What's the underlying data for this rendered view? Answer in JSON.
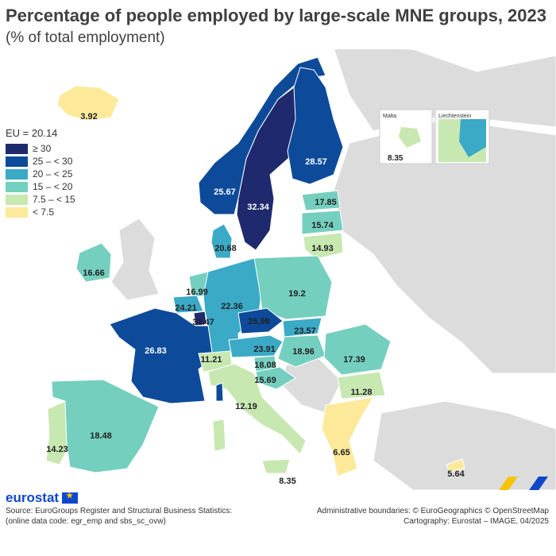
{
  "title": "Percentage of people employed by large-scale MNE groups, 2023",
  "subtitle": "(% of total employment)",
  "legend": {
    "eu_label": "EU = 20.14",
    "classes": [
      {
        "label": "≥ 30",
        "color": "#1f2a6e"
      },
      {
        "label": "25 – < 30",
        "color": "#0d4b9a"
      },
      {
        "label": "20 – < 25",
        "color": "#3aaac6"
      },
      {
        "label": "15 – < 20",
        "color": "#74cfbf"
      },
      {
        "label": "7.5 – < 15",
        "color": "#c7e8b1"
      },
      {
        "label": "< 7.5",
        "color": "#fde99a"
      }
    ]
  },
  "insets": {
    "malta_label": "Malta",
    "liechtenstein_label": "Liechtenstein"
  },
  "countries": [
    {
      "name": "Iceland",
      "value": "3.92"
    },
    {
      "name": "Norway",
      "value": "25.67"
    },
    {
      "name": "Sweden",
      "value": "32.34"
    },
    {
      "name": "Finland",
      "value": "28.57"
    },
    {
      "name": "Estonia",
      "value": "17.85"
    },
    {
      "name": "Latvia",
      "value": "15.74"
    },
    {
      "name": "Lithuania",
      "value": "14.93"
    },
    {
      "name": "Denmark",
      "value": "20.68"
    },
    {
      "name": "Ireland",
      "value": "16.66"
    },
    {
      "name": "Netherlands",
      "value": "16.99"
    },
    {
      "name": "Belgium",
      "value": "24.21"
    },
    {
      "name": "Luxembourg",
      "value": "31.47"
    },
    {
      "name": "Germany",
      "value": "22.36"
    },
    {
      "name": "Poland",
      "value": "19.2"
    },
    {
      "name": "Czechia",
      "value": "25.98"
    },
    {
      "name": "Slovakia",
      "value": "23.57"
    },
    {
      "name": "Austria",
      "value": "23.91"
    },
    {
      "name": "Hungary",
      "value": "18.96"
    },
    {
      "name": "Romania",
      "value": "17.39"
    },
    {
      "name": "France",
      "value": "26.83"
    },
    {
      "name": "Switzerland",
      "value": "11.21"
    },
    {
      "name": "Slovenia",
      "value": "18.08"
    },
    {
      "name": "Croatia",
      "value": "15.69"
    },
    {
      "name": "Bulgaria",
      "value": "11.28"
    },
    {
      "name": "Italy",
      "value": "12.19"
    },
    {
      "name": "Portugal",
      "value": "14.23"
    },
    {
      "name": "Spain",
      "value": "18.48"
    },
    {
      "name": "Greece",
      "value": "6.65"
    },
    {
      "name": "Cyprus",
      "value": "5.64"
    },
    {
      "name": "Malta",
      "value": "8.35"
    },
    {
      "name": "Malta (inset)",
      "value": "8.35"
    }
  ],
  "logo_text": "eurostat",
  "source_lines": [
    "Source: EuroGroups Register and Structural Business Statistics:",
    "(online data code: egr_emp and sbs_sc_ovw)"
  ],
  "credit_lines": [
    "Administrative boundaries: © EuroGeographics © OpenStreetMap",
    "Cartography: Eurostat – IMAGE, 04/2025"
  ]
}
